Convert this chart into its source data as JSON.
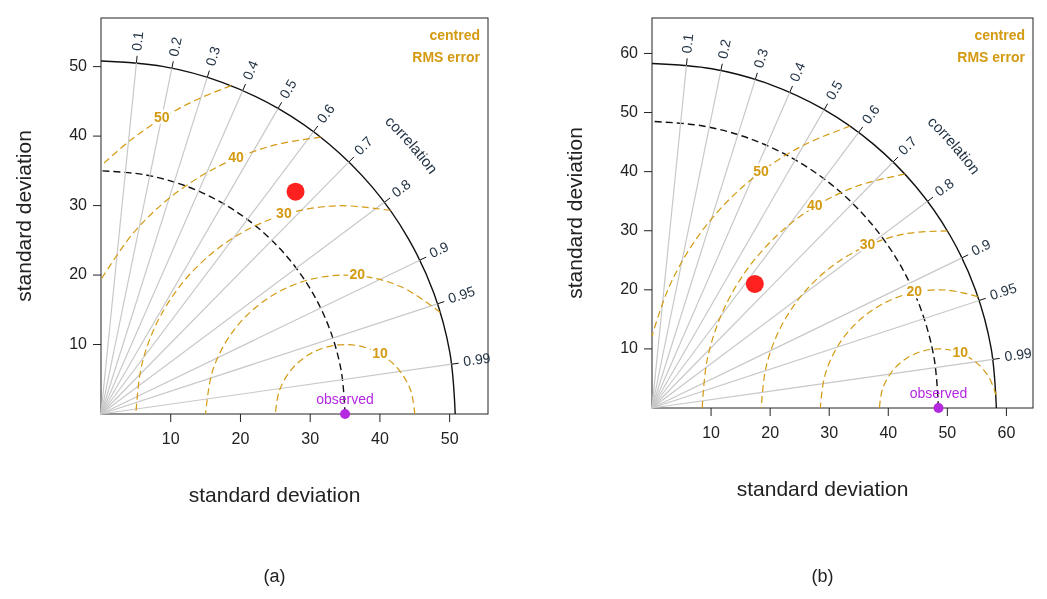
{
  "chart_data": [
    {
      "type": "scatter",
      "title": "(a)",
      "xlabel": "standard deviation",
      "ylabel": "standard deviation",
      "legend_title": "centred RMS error",
      "xlim": [
        0,
        55.5
      ],
      "ylim": [
        0,
        57
      ],
      "xticks": [
        10,
        20,
        30,
        40,
        50
      ],
      "yticks": [
        10,
        20,
        30,
        40,
        50
      ],
      "annotations": [
        "correlation"
      ],
      "series": [
        {
          "color": "#ff2020",
          "marker": "circle",
          "x": [
            27.9
          ],
          "values": [
            32.0
          ]
        },
        {
          "name": "observed",
          "color": "#b428e0",
          "marker": "circle",
          "x": [
            35.0
          ],
          "values": [
            0
          ]
        },
        {
          "type": "line",
          "color": "#111111",
          "line_style": "solid",
          "x": [
            50.8,
            50.03,
            47.74,
            43.99,
            38.91,
            32.65,
            25.4,
            17.37,
            8.82,
            0
          ],
          "values": [
            0,
            8.82,
            17.37,
            25.4,
            32.65,
            38.91,
            43.99,
            47.74,
            50.03,
            50.8
          ]
        },
        {
          "type": "line",
          "color": "#111111",
          "line_style": "dashed",
          "x": [
            35,
            34.47,
            32.89,
            30.31,
            26.81,
            22.5,
            17.5,
            11.97,
            6.08,
            0
          ],
          "values": [
            0,
            6.08,
            11.97,
            17.5,
            22.5,
            26.81,
            30.31,
            32.89,
            34.47,
            35
          ]
        },
        {
          "type": "line",
          "name": "0.1",
          "color": "#c8c8c8",
          "line_style": "solid",
          "x": [
            0,
            5.08
          ],
          "values": [
            0,
            50.55
          ]
        },
        {
          "type": "line",
          "name": "0.2",
          "color": "#c8c8c8",
          "line_style": "solid",
          "x": [
            0,
            10.16
          ],
          "values": [
            0,
            49.77
          ]
        },
        {
          "type": "line",
          "name": "0.3",
          "color": "#c8c8c8",
          "line_style": "solid",
          "x": [
            0,
            15.24
          ],
          "values": [
            0,
            48.46
          ]
        },
        {
          "type": "line",
          "name": "0.4",
          "color": "#c8c8c8",
          "line_style": "solid",
          "x": [
            0,
            20.32
          ],
          "values": [
            0,
            46.56
          ]
        },
        {
          "type": "line",
          "name": "0.5",
          "color": "#c8c8c8",
          "line_style": "solid",
          "x": [
            0,
            25.4
          ],
          "values": [
            0,
            43.99
          ]
        },
        {
          "type": "line",
          "name": "0.6",
          "color": "#c8c8c8",
          "line_style": "solid",
          "x": [
            0,
            30.48
          ],
          "values": [
            0,
            40.64
          ]
        },
        {
          "type": "line",
          "name": "0.7",
          "color": "#c8c8c8",
          "line_style": "solid",
          "x": [
            0,
            35.56
          ],
          "values": [
            0,
            36.28
          ]
        },
        {
          "type": "line",
          "name": "0.8",
          "color": "#c8c8c8",
          "line_style": "solid",
          "x": [
            0,
            40.64
          ],
          "values": [
            0,
            30.48
          ]
        },
        {
          "type": "line",
          "name": "0.9",
          "color": "#c8c8c8",
          "line_style": "solid",
          "x": [
            0,
            45.72
          ],
          "values": [
            0,
            22.14
          ]
        },
        {
          "type": "line",
          "name": "0.95",
          "color": "#c8c8c8",
          "line_style": "solid",
          "x": [
            0,
            48.26
          ],
          "values": [
            0,
            15.86
          ]
        },
        {
          "type": "line",
          "name": "0.99",
          "color": "#c8c8c8",
          "line_style": "solid",
          "x": [
            0,
            50.29
          ],
          "values": [
            0,
            7.17
          ]
        },
        {
          "type": "line",
          "name": "10",
          "color": "#d39a12",
          "line_style": "dashed",
          "x": [
            45,
            44.4,
            42.66,
            40,
            36.74,
            33.26,
            30,
            27.34,
            25.6,
            25
          ],
          "values": [
            0,
            3.42,
            6.43,
            8.66,
            9.85,
            9.85,
            8.66,
            6.43,
            3.42,
            0
          ]
        },
        {
          "type": "line",
          "name": "20",
          "color": "#d39a12",
          "line_style": "dashed",
          "x": [
            48.65,
            43.13,
            36.74,
            30.16,
            24.11,
            19.24,
            16.09,
            15
          ],
          "values": [
            14.62,
            18.27,
            19.92,
            19.41,
            16.77,
            12.31,
            6.51,
            0
          ]
        },
        {
          "type": "line",
          "name": "30",
          "color": "#d39a12",
          "line_style": "dashed",
          "x": [
            41.51,
            33.95,
            26.23,
            19.1,
            13.06,
            8.51,
            5.89,
            5
          ],
          "values": [
            29.29,
            29.98,
            28.69,
            25.44,
            20.46,
            14.09,
            7.26,
            0
          ]
        },
        {
          "type": "line",
          "name": "40",
          "color": "#d39a12",
          "line_style": "dashed",
          "x": [
            31.51,
            25.32,
            19.37,
            13.8,
            8.76,
            4.36,
            0
          ],
          "values": [
            39.85,
            38.81,
            36.82,
            33.92,
            30.19,
            25.71,
            19.36
          ]
        },
        {
          "type": "line",
          "name": "50",
          "color": "#d39a12",
          "line_style": "dashed",
          "x": [
            18.66,
            13.56,
            8.73,
            4.15,
            0
          ],
          "values": [
            47.26,
            45.17,
            42.54,
            39.35,
            35.71
          ]
        }
      ]
    },
    {
      "type": "scatter",
      "title": "(b)",
      "xlabel": "standard deviation",
      "ylabel": "standard deviation",
      "legend_title": "centred RMS error",
      "xlim": [
        0,
        64.5
      ],
      "ylim": [
        0,
        66
      ],
      "xticks": [
        10,
        20,
        30,
        40,
        50,
        60
      ],
      "yticks": [
        10,
        20,
        30,
        40,
        50,
        60
      ],
      "annotations": [
        "correlation"
      ],
      "series": [
        {
          "color": "#ff2020",
          "marker": "circle",
          "x": [
            17.4
          ],
          "values": [
            21.0
          ]
        },
        {
          "name": "observed",
          "color": "#b428e0",
          "marker": "circle",
          "x": [
            48.5
          ],
          "values": [
            0
          ]
        },
        {
          "type": "line",
          "color": "#111111",
          "line_style": "solid",
          "x": [
            58.3,
            57.41,
            54.78,
            50.49,
            44.66,
            37.48,
            29.15,
            19.94,
            10.12,
            0
          ],
          "values": [
            0,
            10.12,
            19.94,
            29.15,
            37.48,
            44.66,
            50.49,
            54.78,
            57.41,
            58.3
          ]
        },
        {
          "type": "line",
          "color": "#111111",
          "line_style": "dashed",
          "x": [
            48.5,
            47.76,
            45.57,
            42.0,
            37.15,
            31.18,
            24.25,
            16.59,
            8.42,
            0
          ],
          "values": [
            0,
            8.42,
            16.59,
            24.25,
            31.18,
            37.15,
            42.0,
            45.57,
            47.76,
            48.5
          ]
        },
        {
          "type": "line",
          "name": "0.1",
          "color": "#c8c8c8",
          "line_style": "solid",
          "x": [
            0,
            5.83
          ],
          "values": [
            0,
            58.01
          ]
        },
        {
          "type": "line",
          "name": "0.2",
          "color": "#c8c8c8",
          "line_style": "solid",
          "x": [
            0,
            11.66
          ],
          "values": [
            0,
            57.12
          ]
        },
        {
          "type": "line",
          "name": "0.3",
          "color": "#c8c8c8",
          "line_style": "solid",
          "x": [
            0,
            17.49
          ],
          "values": [
            0,
            55.61
          ]
        },
        {
          "type": "line",
          "name": "0.4",
          "color": "#c8c8c8",
          "line_style": "solid",
          "x": [
            0,
            23.32
          ],
          "values": [
            0,
            53.43
          ]
        },
        {
          "type": "line",
          "name": "0.5",
          "color": "#c8c8c8",
          "line_style": "solid",
          "x": [
            0,
            29.15
          ],
          "values": [
            0,
            50.49
          ]
        },
        {
          "type": "line",
          "name": "0.6",
          "color": "#c8c8c8",
          "line_style": "solid",
          "x": [
            0,
            34.98
          ],
          "values": [
            0,
            46.64
          ]
        },
        {
          "type": "line",
          "name": "0.7",
          "color": "#c8c8c8",
          "line_style": "solid",
          "x": [
            0,
            40.81
          ],
          "values": [
            0,
            41.63
          ]
        },
        {
          "type": "line",
          "name": "0.8",
          "color": "#c8c8c8",
          "line_style": "solid",
          "x": [
            0,
            46.64
          ],
          "values": [
            0,
            34.98
          ]
        },
        {
          "type": "line",
          "name": "0.9",
          "color": "#c8c8c8",
          "line_style": "solid",
          "x": [
            0,
            52.47
          ],
          "values": [
            0,
            25.41
          ]
        },
        {
          "type": "line",
          "name": "0.95",
          "color": "#c8c8c8",
          "line_style": "solid",
          "x": [
            0,
            55.39
          ],
          "values": [
            0,
            18.2
          ]
        },
        {
          "type": "line",
          "name": "0.99",
          "color": "#c8c8c8",
          "line_style": "solid",
          "x": [
            0,
            57.72
          ],
          "values": [
            0,
            8.23
          ]
        },
        {
          "type": "line",
          "name": "10",
          "color": "#d39a12",
          "line_style": "dashed",
          "x": [
            58.26,
            57.05,
            54.96,
            52.18,
            49.02,
            45.81,
            42.88,
            40.54,
            39.02,
            38.5
          ],
          "values": [
            2.18,
            5.18,
            7.64,
            9.3,
            9.99,
            9.63,
            8.27,
            6.05,
            3.19,
            0
          ]
        },
        {
          "type": "line",
          "name": "20",
          "color": "#d39a12",
          "line_style": "dashed",
          "x": [
            55.17,
            49.84,
            44.41,
            39.28,
            34.84,
            31.4,
            29.24,
            28.5
          ],
          "values": [
            18.86,
            19.96,
            19.58,
            17.75,
            14.61,
            10.38,
            5.39,
            0
          ]
        },
        {
          "type": "line",
          "name": "30",
          "color": "#d39a12",
          "line_style": "dashed",
          "x": [
            50.01,
            43.09,
            36.47,
            30.48,
            25.45,
            21.66,
            19.3,
            18.5
          ],
          "values": [
            29.96,
            29.51,
            27.48,
            23.99,
            19.2,
            13.41,
            6.89,
            0
          ]
        },
        {
          "type": "line",
          "name": "40",
          "color": "#d39a12",
          "line_style": "dashed",
          "x": [
            42.8,
            34.89,
            27.56,
            21.1,
            15.76,
            11.78,
            9.33,
            8.5
          ],
          "values": [
            39.59,
            37.62,
            34.08,
            29.14,
            22.98,
            15.87,
            8.1,
            0
          ]
        },
        {
          "type": "line",
          "name": "50",
          "color": "#d39a12",
          "line_style": "dashed",
          "x": [
            33.52,
            25.65,
            18.46,
            12.13,
            6.84,
            2.76,
            0
          ],
          "values": [
            47.7,
            44.48,
            39.97,
            34.31,
            27.65,
            20.19,
            12.16
          ]
        }
      ]
    }
  ]
}
